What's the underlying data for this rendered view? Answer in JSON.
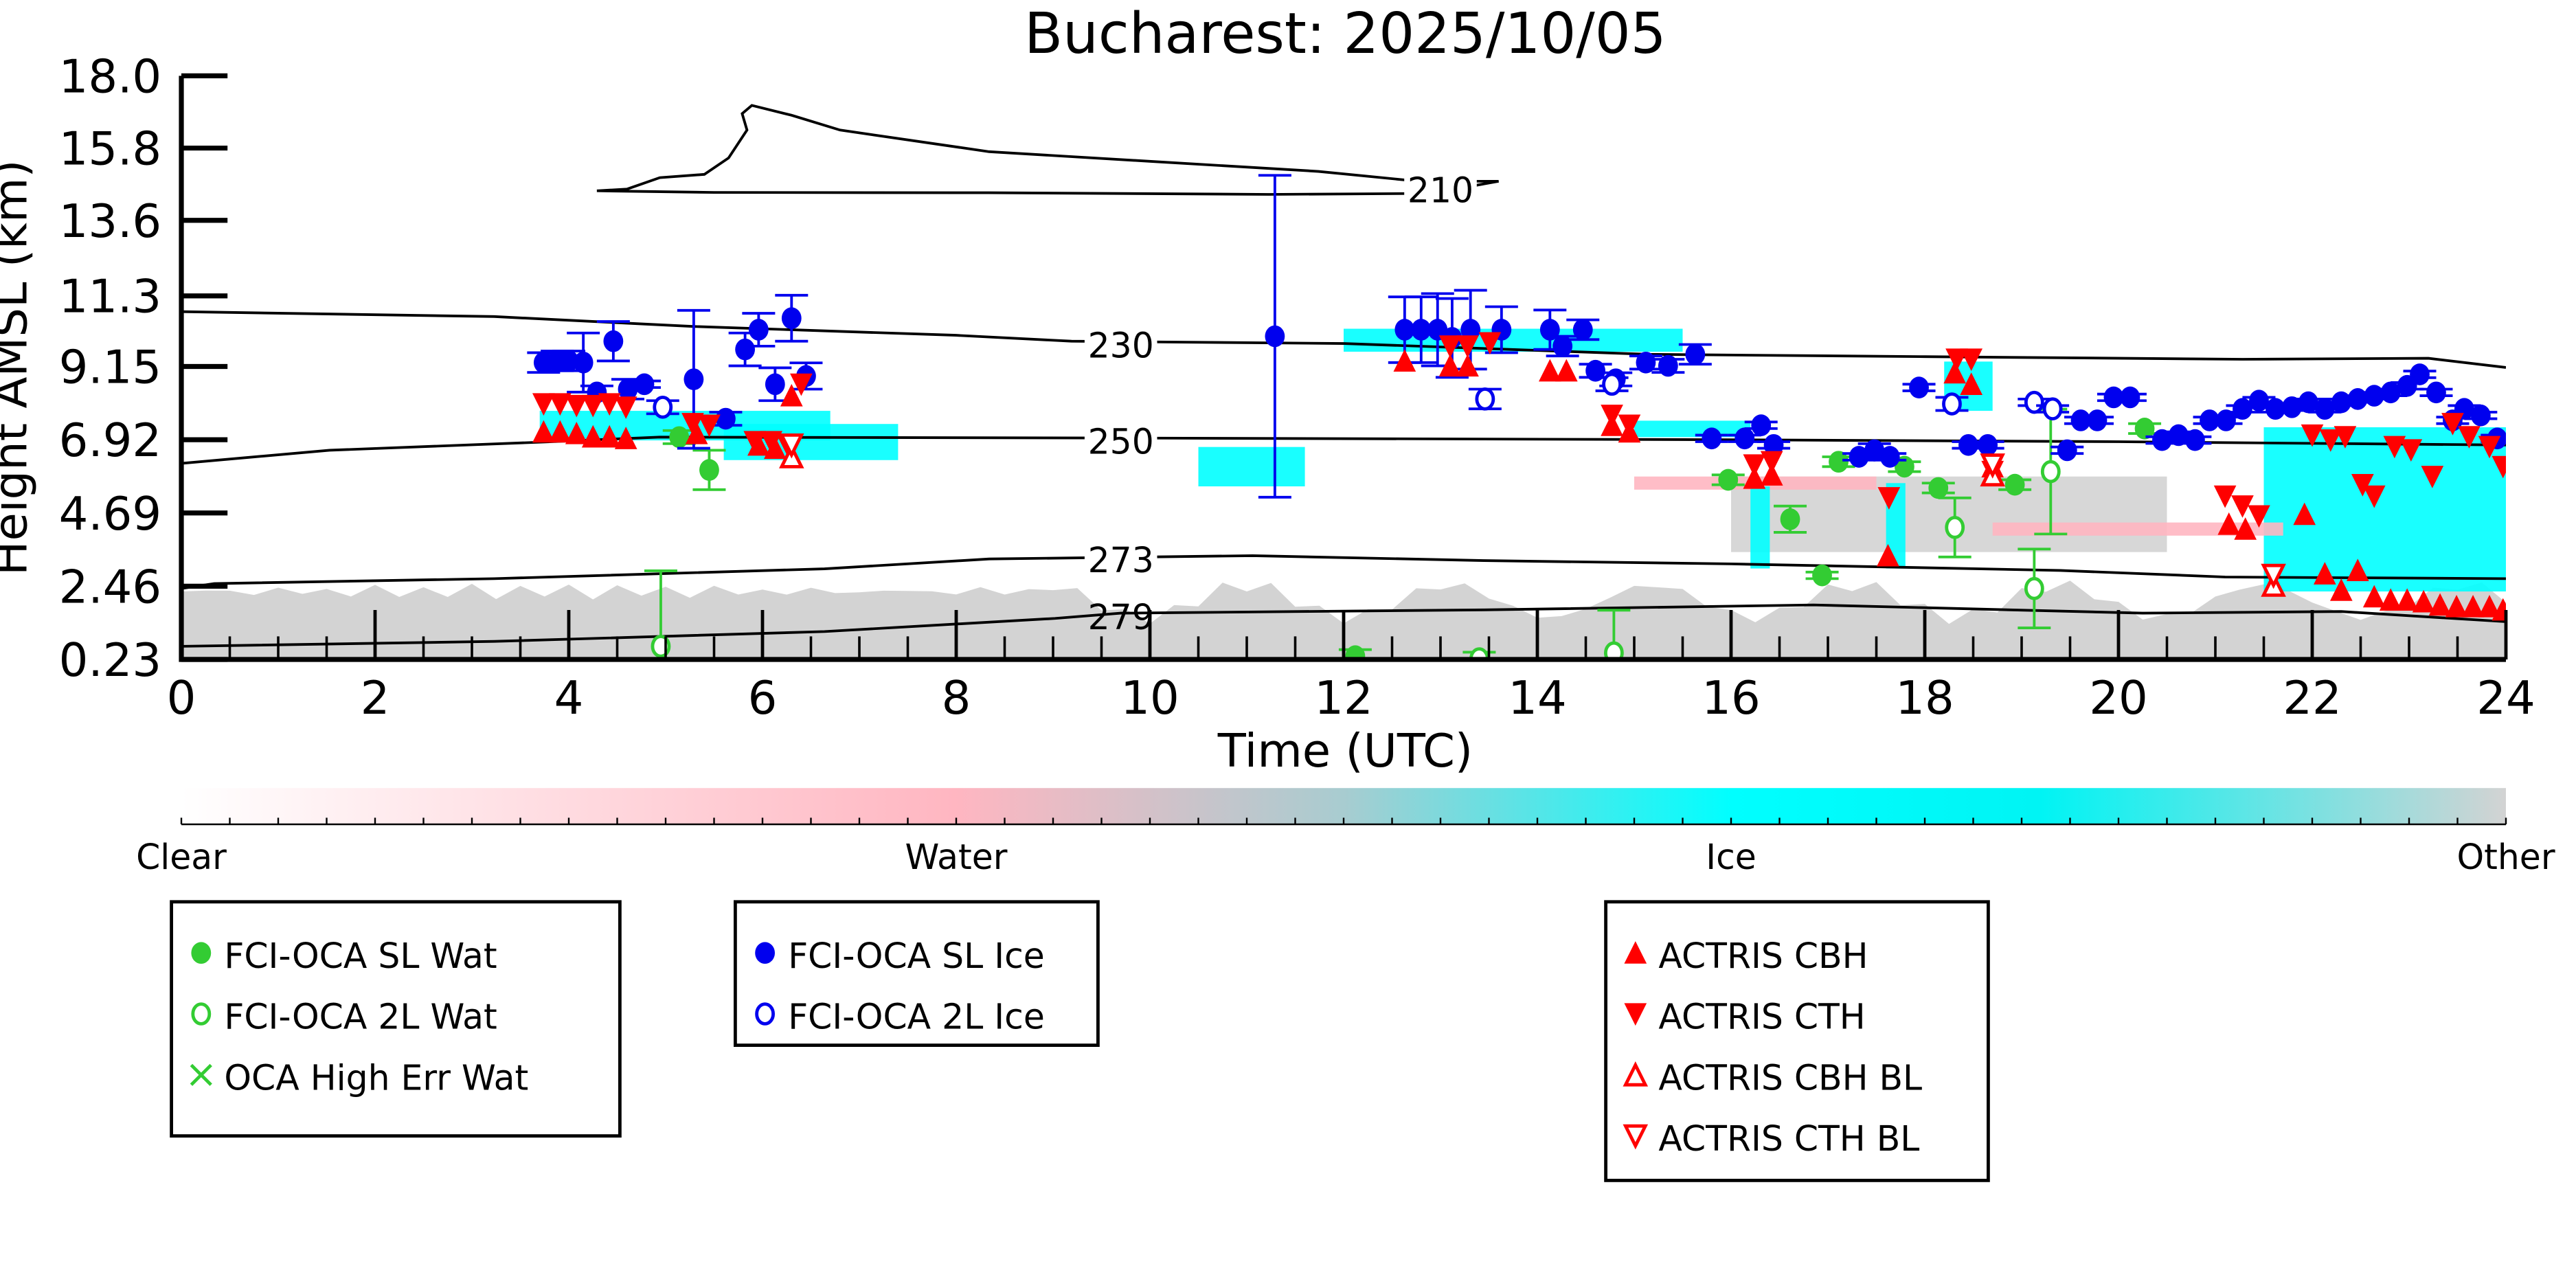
{
  "chart_data": {
    "type": "scatter",
    "title": "Bucharest: 2025/10/05",
    "xlabel": "Time (UTC)",
    "ylabel": "Height AMSL (km)",
    "xlim": [
      0,
      24
    ],
    "ylim": [
      0.23,
      18.0
    ],
    "xticks": [
      "0",
      "2",
      "4",
      "6",
      "8",
      "10",
      "12",
      "14",
      "16",
      "18",
      "20",
      "22",
      "24"
    ],
    "yticks": [
      "0.23",
      "2.46",
      "4.69",
      "6.92",
      "9.15",
      "11.3",
      "13.6",
      "15.8",
      "18.0"
    ],
    "ytick_values": [
      0.23,
      2.46,
      4.69,
      6.92,
      9.15,
      11.3,
      13.6,
      15.8,
      18.0
    ],
    "colorbar": {
      "labels": [
        "Clear",
        "Water",
        "Ice",
        "Other"
      ],
      "colors": [
        "#ffffff",
        "#ffb6c1",
        "#00ffff",
        "#d3d3d3"
      ]
    },
    "contours": [
      {
        "label": "210",
        "label_at": [
          13.0,
          14.6
        ],
        "points": [
          [
            4.29,
            14.5
          ],
          [
            4.6,
            14.55
          ],
          [
            4.94,
            14.9
          ],
          [
            5.4,
            15.0
          ],
          [
            5.65,
            15.5
          ],
          [
            5.84,
            16.35
          ],
          [
            5.79,
            16.85
          ],
          [
            5.89,
            17.1
          ],
          [
            6.3,
            16.8
          ],
          [
            6.8,
            16.35
          ],
          [
            8.34,
            15.69
          ],
          [
            10.04,
            15.39
          ],
          [
            11.74,
            15.09
          ],
          [
            12.77,
            14.79
          ],
          [
            13.6,
            14.79
          ],
          [
            12.9,
            14.42
          ],
          [
            11.23,
            14.39
          ],
          [
            8.34,
            14.44
          ],
          [
            5.5,
            14.45
          ],
          [
            4.29,
            14.5
          ]
        ]
      },
      {
        "label": "230",
        "label_at": [
          9.7,
          9.87
        ],
        "points": [
          [
            0,
            10.82
          ],
          [
            3.23,
            10.67
          ],
          [
            5.28,
            10.37
          ],
          [
            8.0,
            10.1
          ],
          [
            9.19,
            9.92
          ],
          [
            12.0,
            9.85
          ],
          [
            15.15,
            9.52
          ],
          [
            18.0,
            9.45
          ],
          [
            21.28,
            9.37
          ],
          [
            23.2,
            9.4
          ],
          [
            24,
            9.12
          ]
        ]
      },
      {
        "label": "250",
        "label_at": [
          9.7,
          6.95
        ],
        "points": [
          [
            0,
            6.2
          ],
          [
            1.53,
            6.6
          ],
          [
            3.74,
            6.85
          ],
          [
            4.94,
            7.0
          ],
          [
            10.0,
            6.97
          ],
          [
            16.0,
            6.92
          ],
          [
            20.0,
            6.86
          ],
          [
            24,
            6.76
          ]
        ]
      },
      {
        "label": "273",
        "label_at": [
          9.7,
          3.34
        ],
        "points": [
          [
            0,
            2.39
          ],
          [
            0.34,
            2.54
          ],
          [
            3.23,
            2.69
          ],
          [
            6.64,
            2.99
          ],
          [
            8.34,
            3.29
          ],
          [
            9.7,
            3.34
          ],
          [
            11.06,
            3.39
          ],
          [
            13.45,
            3.24
          ],
          [
            16.0,
            3.14
          ],
          [
            19.4,
            2.94
          ],
          [
            21.1,
            2.74
          ],
          [
            24,
            2.69
          ]
        ]
      },
      {
        "label": "279",
        "label_at": [
          9.7,
          1.6
        ],
        "points": [
          [
            0,
            0.63
          ],
          [
            3.23,
            0.78
          ],
          [
            6.64,
            1.08
          ],
          [
            9.02,
            1.48
          ],
          [
            9.7,
            1.64
          ],
          [
            13.45,
            1.74
          ],
          [
            16.85,
            1.89
          ],
          [
            20.25,
            1.64
          ],
          [
            22.3,
            1.69
          ],
          [
            24,
            1.38
          ]
        ]
      }
    ],
    "series": [
      {
        "name": "FCI-OCA SL Wat",
        "marker": "filled-circle",
        "color": "#33cc33",
        "points": [
          [
            5.14,
            7.0,
            0.2
          ],
          [
            5.45,
            6.0,
            0.6
          ],
          [
            15.97,
            5.7,
            0.15
          ],
          [
            16.61,
            4.5,
            0.4
          ],
          [
            16.94,
            2.79,
            0.1
          ],
          [
            17.11,
            6.25,
            0.15
          ],
          [
            17.79,
            6.1,
            0.15
          ],
          [
            18.14,
            5.45,
            0.15
          ],
          [
            18.93,
            5.55,
            0.15
          ],
          [
            20.27,
            7.26,
            0.15
          ],
          [
            12.12,
            0.33,
            0.2
          ]
        ]
      },
      {
        "name": "FCI-OCA 2L Wat",
        "marker": "open-circle",
        "color": "#33cc33",
        "points": [
          [
            4.95,
            0.63,
            2.3
          ],
          [
            14.79,
            0.43,
            1.3
          ],
          [
            18.31,
            4.25,
            0.9
          ],
          [
            19.13,
            2.39,
            1.2
          ],
          [
            19.3,
            5.95,
            1.9
          ],
          [
            13.4,
            0.25,
            0.2
          ]
        ]
      },
      {
        "name": "OCA High Err Wat",
        "marker": "x",
        "color": "#33cc33",
        "points": []
      },
      {
        "name": "FCI-OCA SL Ice",
        "marker": "filled-circle",
        "color": "#0000ee",
        "points": [
          [
            3.74,
            9.27,
            0.3
          ],
          [
            3.88,
            9.32,
            0.3
          ],
          [
            4.0,
            9.32,
            0.3
          ],
          [
            4.15,
            9.27,
            0.9
          ],
          [
            4.29,
            8.36,
            0.2
          ],
          [
            4.46,
            9.92,
            0.6
          ],
          [
            4.61,
            8.46,
            0.3
          ],
          [
            4.78,
            8.61,
            0.1
          ],
          [
            5.29,
            8.76,
            2.1
          ],
          [
            5.62,
            7.56,
            0.2
          ],
          [
            5.82,
            9.67,
            0.5
          ],
          [
            5.96,
            10.27,
            0.5
          ],
          [
            6.13,
            8.61,
            0.5
          ],
          [
            6.3,
            10.62,
            0.7
          ],
          [
            6.45,
            8.86,
            0.4
          ],
          [
            11.29,
            10.07,
            4.9
          ],
          [
            12.63,
            10.27,
            1.0
          ],
          [
            12.8,
            10.27,
            1.0
          ],
          [
            12.97,
            10.27,
            1.1
          ],
          [
            13.12,
            10.02,
            1.2
          ],
          [
            13.31,
            10.27,
            1.2
          ],
          [
            13.63,
            10.27,
            0.7
          ],
          [
            14.13,
            10.27,
            0.6
          ],
          [
            14.26,
            9.77,
            0.3
          ],
          [
            14.47,
            10.27,
            0.3
          ],
          [
            14.6,
            9.02,
            0.2
          ],
          [
            14.81,
            8.76,
            0.2
          ],
          [
            15.12,
            9.27,
            0.2
          ],
          [
            15.35,
            9.17,
            0.2
          ],
          [
            15.63,
            9.52,
            0.3
          ],
          [
            15.8,
            6.96,
            0.1
          ],
          [
            16.14,
            6.96,
            0.1
          ],
          [
            16.31,
            7.36,
            0.1
          ],
          [
            16.44,
            6.76,
            0.1
          ],
          [
            17.32,
            6.4,
            0.1
          ],
          [
            17.48,
            6.6,
            0.2
          ],
          [
            17.64,
            6.4,
            0.1
          ],
          [
            17.94,
            8.51,
            0.1
          ],
          [
            18.45,
            6.76,
            0.1
          ],
          [
            18.65,
            6.76,
            0.1
          ],
          [
            19.47,
            6.6,
            0.1
          ],
          [
            19.61,
            7.51,
            0.1
          ],
          [
            19.78,
            7.51,
            0.1
          ],
          [
            19.95,
            8.21,
            0.1
          ],
          [
            20.12,
            8.21,
            0.1
          ],
          [
            20.45,
            6.91,
            0.1
          ],
          [
            20.62,
            7.06,
            0.1
          ],
          [
            20.79,
            6.91,
            0.1
          ],
          [
            20.94,
            7.51,
            0.1
          ],
          [
            21.11,
            7.51,
            0.1
          ],
          [
            21.28,
            7.86,
            0.1
          ],
          [
            21.45,
            8.11,
            0.1
          ],
          [
            21.62,
            7.86,
            0.1
          ],
          [
            21.79,
            7.91,
            0.1
          ],
          [
            21.96,
            8.06,
            0.1
          ],
          [
            22.13,
            7.86,
            0.1
          ],
          [
            22.3,
            8.06,
            0.1
          ],
          [
            22.47,
            8.16,
            0.1
          ],
          [
            22.64,
            8.26,
            0.1
          ],
          [
            22.81,
            8.36,
            0.1
          ],
          [
            22.98,
            8.56,
            0.1
          ],
          [
            23.11,
            8.91,
            0.1
          ],
          [
            23.28,
            8.36,
            0.1
          ],
          [
            23.45,
            7.51,
            0.1
          ],
          [
            23.57,
            7.86,
            0.1
          ],
          [
            23.74,
            7.66,
            0.1
          ],
          [
            23.91,
            6.96,
            0.1
          ]
        ]
      },
      {
        "name": "FCI-OCA 2L Ice",
        "marker": "open-circle",
        "color": "#0000ee",
        "points": [
          [
            4.97,
            7.91,
            0.2
          ],
          [
            13.46,
            8.16,
            0.3
          ],
          [
            14.77,
            8.61,
            0.2
          ],
          [
            18.28,
            8.01,
            0.2
          ],
          [
            19.13,
            8.06,
            0.1
          ],
          [
            19.32,
            7.86,
            0.1
          ]
        ]
      },
      {
        "name": "ACTRIS CBH",
        "marker": "filled-triangle-up",
        "color": "#ff0000",
        "points": [
          [
            3.74,
            7.16
          ],
          [
            3.91,
            7.16
          ],
          [
            4.08,
            7.11
          ],
          [
            4.25,
            7.01
          ],
          [
            4.42,
            7.01
          ],
          [
            4.59,
            6.96
          ],
          [
            5.32,
            7.11
          ],
          [
            5.96,
            6.76
          ],
          [
            6.13,
            6.66
          ],
          [
            6.3,
            8.26
          ],
          [
            12.63,
            9.32
          ],
          [
            13.1,
            9.17
          ],
          [
            13.28,
            9.17
          ],
          [
            14.13,
            9.02
          ],
          [
            14.3,
            9.02
          ],
          [
            14.77,
            7.36
          ],
          [
            14.95,
            7.16
          ],
          [
            16.24,
            5.75
          ],
          [
            16.42,
            5.85
          ],
          [
            17.62,
            3.39
          ],
          [
            18.31,
            8.96
          ],
          [
            18.48,
            8.61
          ],
          [
            18.7,
            6.1
          ],
          [
            21.14,
            4.35
          ],
          [
            21.31,
            4.2
          ],
          [
            21.92,
            4.65
          ],
          [
            22.13,
            2.84
          ],
          [
            22.3,
            2.34
          ],
          [
            22.47,
            2.94
          ],
          [
            22.64,
            2.14
          ],
          [
            22.81,
            2.04
          ],
          [
            22.98,
            2.04
          ],
          [
            23.15,
            1.99
          ],
          [
            23.32,
            1.89
          ],
          [
            23.49,
            1.84
          ],
          [
            23.66,
            1.84
          ],
          [
            23.83,
            1.84
          ],
          [
            23.97,
            1.74
          ]
        ]
      },
      {
        "name": "ACTRIS CTH",
        "marker": "filled-triangle-down",
        "color": "#ff0000",
        "points": [
          [
            3.74,
            8.01
          ],
          [
            3.91,
            8.01
          ],
          [
            4.08,
            7.96
          ],
          [
            4.25,
            7.96
          ],
          [
            4.42,
            8.01
          ],
          [
            4.59,
            7.91
          ],
          [
            5.28,
            7.41
          ],
          [
            5.45,
            7.36
          ],
          [
            5.92,
            6.86
          ],
          [
            6.09,
            6.86
          ],
          [
            6.26,
            6.76
          ],
          [
            6.4,
            8.61
          ],
          [
            13.1,
            9.77
          ],
          [
            13.28,
            9.77
          ],
          [
            13.51,
            9.87
          ],
          [
            14.77,
            7.66
          ],
          [
            14.95,
            7.36
          ],
          [
            16.24,
            6.15
          ],
          [
            16.42,
            6.25
          ],
          [
            17.63,
            5.15
          ],
          [
            18.33,
            9.37
          ],
          [
            18.48,
            9.37
          ],
          [
            18.7,
            5.95
          ],
          [
            21.1,
            5.2
          ],
          [
            21.28,
            4.9
          ],
          [
            21.45,
            4.6
          ],
          [
            22.0,
            7.06
          ],
          [
            22.19,
            6.91
          ],
          [
            22.34,
            7.01
          ],
          [
            22.52,
            5.55
          ],
          [
            22.64,
            5.2
          ],
          [
            22.85,
            6.71
          ],
          [
            23.02,
            6.61
          ],
          [
            23.24,
            5.8
          ],
          [
            23.45,
            7.41
          ],
          [
            23.62,
            7.01
          ],
          [
            23.83,
            6.71
          ],
          [
            23.97,
            6.1
          ]
        ]
      },
      {
        "name": "ACTRIS CBH BL",
        "marker": "open-triangle-up",
        "color": "#ff0000",
        "points": [
          [
            6.3,
            6.4
          ],
          [
            18.7,
            5.85
          ],
          [
            21.6,
            2.49
          ]
        ]
      },
      {
        "name": "ACTRIS CTH BL",
        "marker": "open-triangle-down",
        "color": "#ff0000",
        "points": [
          [
            6.3,
            6.76
          ],
          [
            18.7,
            6.15
          ],
          [
            21.6,
            2.79
          ]
        ]
      }
    ],
    "legends": [
      [
        "FCI-OCA SL Wat",
        "FCI-OCA 2L Wat",
        "OCA High Err Wat"
      ],
      [
        "FCI-OCA SL Ice",
        "FCI-OCA 2L Ice"
      ],
      [
        "ACTRIS CBH",
        "ACTRIS CTH",
        "ACTRIS CBH BL",
        "ACTRIS CTH BL"
      ]
    ]
  }
}
